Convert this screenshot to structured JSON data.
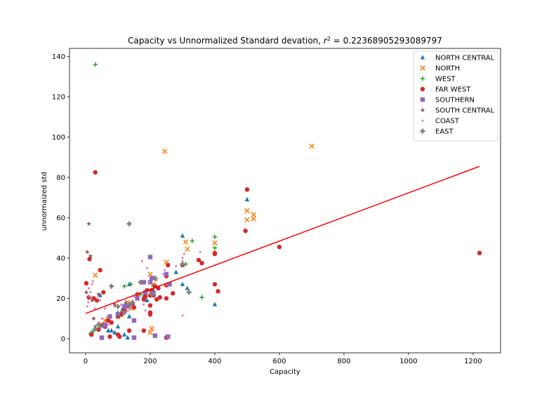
{
  "chart_data": {
    "type": "scatter",
    "title": "Capacity vs Unnormalized Standard devation, r² = 0.22368905293089797",
    "title_prefix": "Capacity vs Unnormalized Standard devation, ",
    "title_r2_symbol": "r",
    "title_r2_exp": "2",
    "title_r2_value": " = 0.22368905293089797",
    "xlabel": "Capacity",
    "ylabel": "unnormaized std",
    "xlim": [
      -50,
      1285
    ],
    "ylim": [
      -7,
      144
    ],
    "x_ticks": [
      0,
      200,
      400,
      600,
      800,
      1000,
      1200
    ],
    "y_ticks": [
      0,
      20,
      40,
      60,
      80,
      100,
      120,
      140
    ],
    "grid": false,
    "legend_position": "top-right",
    "series": [
      {
        "name": "NORTH CENTRAL",
        "marker": "triangle",
        "color": "#1f77b4",
        "points": [
          [
            45,
            21.5
          ],
          [
            60,
            6
          ],
          [
            70,
            4
          ],
          [
            80,
            4
          ],
          [
            90,
            3
          ],
          [
            100,
            6
          ],
          [
            110,
            13
          ],
          [
            115,
            15
          ],
          [
            120,
            2
          ],
          [
            125,
            18
          ],
          [
            130,
            0.5
          ],
          [
            135,
            27
          ],
          [
            135,
            11
          ],
          [
            140,
            17
          ],
          [
            180,
            21
          ],
          [
            190,
            19
          ],
          [
            200,
            22
          ],
          [
            210,
            24
          ],
          [
            280,
            33
          ],
          [
            300,
            51
          ],
          [
            300,
            27
          ],
          [
            315,
            25
          ],
          [
            400,
            17
          ],
          [
            500,
            69
          ]
        ]
      },
      {
        "name": "NORTH",
        "marker": "x",
        "color": "#ff7f0e",
        "points": [
          [
            30,
            31.5
          ],
          [
            50,
            7
          ],
          [
            60,
            9
          ],
          [
            70,
            10
          ],
          [
            100,
            11
          ],
          [
            110,
            12
          ],
          [
            130,
            18
          ],
          [
            140,
            15
          ],
          [
            200,
            32
          ],
          [
            200,
            3
          ],
          [
            205,
            5
          ],
          [
            210,
            27
          ],
          [
            245,
            93
          ],
          [
            250,
            38
          ],
          [
            255,
            1
          ],
          [
            310,
            48
          ],
          [
            315,
            44.5
          ],
          [
            400,
            47.5
          ],
          [
            500,
            63.5
          ],
          [
            500,
            59
          ],
          [
            520,
            61.5
          ],
          [
            520,
            59.5
          ],
          [
            700,
            95.5
          ]
        ]
      },
      {
        "name": "WEST",
        "marker": "plus",
        "color": "#2ca02c",
        "points": [
          [
            15,
            2.5
          ],
          [
            20,
            3
          ],
          [
            25,
            4
          ],
          [
            30,
            136
          ],
          [
            45,
            6
          ],
          [
            100,
            13
          ],
          [
            110,
            12
          ],
          [
            120,
            26
          ],
          [
            140,
            27
          ],
          [
            170,
            22
          ],
          [
            200,
            24
          ],
          [
            210,
            26
          ],
          [
            310,
            37
          ],
          [
            330,
            48.5
          ],
          [
            360,
            20.5
          ],
          [
            400,
            50.5
          ],
          [
            400,
            45
          ]
        ]
      },
      {
        "name": "FAR WEST",
        "marker": "circle",
        "color": "#d62728",
        "points": [
          [
            2,
            27.5
          ],
          [
            10,
            20.5
          ],
          [
            12,
            39.5
          ],
          [
            18,
            2
          ],
          [
            25,
            20
          ],
          [
            30,
            82.5
          ],
          [
            35,
            19
          ],
          [
            40,
            4.5
          ],
          [
            45,
            34
          ],
          [
            55,
            23
          ],
          [
            60,
            6
          ],
          [
            70,
            9
          ],
          [
            75,
            1
          ],
          [
            80,
            8
          ],
          [
            100,
            2
          ],
          [
            100,
            11
          ],
          [
            105,
            1
          ],
          [
            110,
            12
          ],
          [
            120,
            14
          ],
          [
            135,
            4
          ],
          [
            145,
            17
          ],
          [
            150,
            15.5
          ],
          [
            160,
            22
          ],
          [
            180,
            4
          ],
          [
            180,
            19.5
          ],
          [
            185,
            21
          ],
          [
            190,
            24
          ],
          [
            200,
            21.5
          ],
          [
            200,
            12
          ],
          [
            200,
            16.5
          ],
          [
            200,
            13
          ],
          [
            205,
            24
          ],
          [
            210,
            21.5
          ],
          [
            215,
            26
          ],
          [
            220,
            19.5
          ],
          [
            225,
            25
          ],
          [
            230,
            20.5
          ],
          [
            250,
            26.5
          ],
          [
            250,
            20
          ],
          [
            250,
            31
          ],
          [
            250,
            0.5
          ],
          [
            255,
            36.5
          ],
          [
            260,
            27
          ],
          [
            270,
            22.5
          ],
          [
            300,
            36.5
          ],
          [
            350,
            39
          ],
          [
            360,
            37.5
          ],
          [
            400,
            42
          ],
          [
            400,
            27
          ],
          [
            400,
            42.5
          ],
          [
            410,
            23.5
          ],
          [
            495,
            53.5
          ],
          [
            500,
            74
          ],
          [
            600,
            45.5
          ],
          [
            1220,
            42.5
          ]
        ]
      },
      {
        "name": "SOUTHERN",
        "marker": "square",
        "color": "#9467bd",
        "points": [
          [
            50,
            0.5
          ],
          [
            55,
            6.5
          ],
          [
            60,
            7
          ],
          [
            75,
            11
          ],
          [
            100,
            12
          ],
          [
            120,
            16
          ],
          [
            130,
            16
          ],
          [
            140,
            17
          ],
          [
            150,
            0.5
          ],
          [
            150,
            9
          ],
          [
            160,
            20
          ],
          [
            180,
            28
          ],
          [
            185,
            23
          ],
          [
            200,
            40.5
          ],
          [
            200,
            28
          ],
          [
            205,
            30
          ],
          [
            210,
            22.5
          ],
          [
            215,
            1.5
          ],
          [
            250,
            32
          ],
          [
            255,
            1
          ],
          [
            260,
            27
          ]
        ]
      },
      {
        "name": "SOUTH CENTRAL",
        "marker": "star",
        "color": "#8c564b",
        "points": [
          [
            2,
            23
          ],
          [
            5,
            43
          ],
          [
            10,
            57
          ],
          [
            15,
            41
          ],
          [
            20,
            19
          ],
          [
            25,
            10
          ],
          [
            30,
            6
          ],
          [
            40,
            22
          ],
          [
            50,
            7
          ],
          [
            90,
            17
          ],
          [
            100,
            11
          ]
        ]
      },
      {
        "name": "COAST",
        "marker": "pentagon",
        "color": "#e377c2",
        "points": [
          [
            5,
            16
          ],
          [
            8,
            18
          ],
          [
            10,
            25
          ],
          [
            12,
            21
          ],
          [
            15,
            23
          ],
          [
            20,
            27
          ],
          [
            22,
            28.5
          ],
          [
            28,
            15
          ],
          [
            35,
            20
          ],
          [
            40,
            8
          ],
          [
            45,
            19
          ],
          [
            50,
            10
          ],
          [
            60,
            15
          ],
          [
            70,
            7
          ],
          [
            90,
            16
          ],
          [
            100,
            19
          ],
          [
            110,
            17
          ],
          [
            130,
            14
          ],
          [
            150,
            21
          ],
          [
            160,
            22
          ],
          [
            175,
            38.5
          ],
          [
            180,
            17
          ],
          [
            185,
            14
          ],
          [
            190,
            35
          ],
          [
            195,
            28
          ],
          [
            200,
            22
          ],
          [
            220,
            29
          ],
          [
            240,
            32
          ],
          [
            245,
            34
          ],
          [
            250,
            27
          ],
          [
            280,
            36
          ],
          [
            300,
            11.5
          ],
          [
            300,
            38.5
          ],
          [
            300,
            40
          ],
          [
            305,
            42
          ],
          [
            355,
            43
          ]
        ]
      },
      {
        "name": "EAST",
        "marker": "plus-thick",
        "color": "#7f7f7f",
        "points": [
          [
            30,
            5
          ],
          [
            40,
            7
          ],
          [
            80,
            26
          ],
          [
            100,
            16
          ],
          [
            120,
            13
          ],
          [
            135,
            57
          ],
          [
            140,
            17
          ],
          [
            145,
            18
          ],
          [
            170,
            28
          ],
          [
            205,
            22
          ],
          [
            215,
            30
          ],
          [
            300,
            37
          ],
          [
            320,
            23
          ]
        ]
      }
    ],
    "regression": {
      "color": "#ff0000",
      "x": [
        0,
        1220
      ],
      "y": [
        12.5,
        85.5
      ]
    }
  }
}
